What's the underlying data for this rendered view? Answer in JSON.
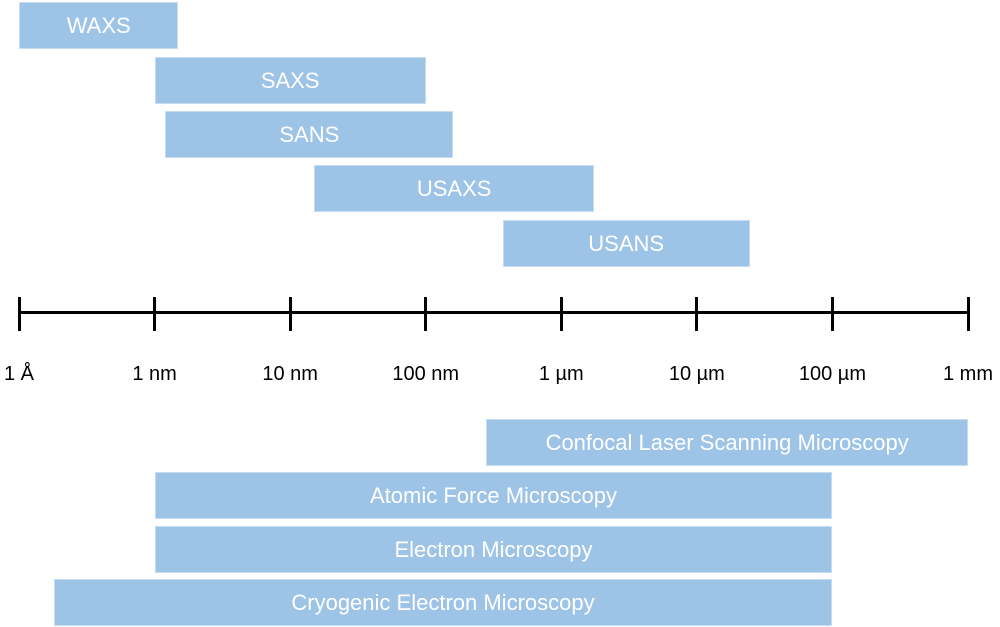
{
  "axis": {
    "scale": "log",
    "unit": "nm",
    "range": [
      0.1,
      1000000
    ],
    "ticks": [
      {
        "value": 0.1,
        "label": "1 Å"
      },
      {
        "value": 1,
        "label": "1 nm"
      },
      {
        "value": 10,
        "label": "10 nm"
      },
      {
        "value": 100,
        "label": "100 nm"
      },
      {
        "value": 1000,
        "label": "1 µm"
      },
      {
        "value": 10000,
        "label": "10 µm"
      },
      {
        "value": 100000,
        "label": "100 µm"
      },
      {
        "value": 1000000,
        "label": "1 mm"
      }
    ]
  },
  "bar_color": "#9dc3e6",
  "scattering_techniques": [
    {
      "label": "WAXS",
      "min": 0.1,
      "max": 1.5
    },
    {
      "label": "SAXS",
      "min": 1,
      "max": 100
    },
    {
      "label": "SANS",
      "min": 1.2,
      "max": 160
    },
    {
      "label": "USAXS",
      "min": 15,
      "max": 1750
    },
    {
      "label": "USANS",
      "min": 370,
      "max": 24500
    }
  ],
  "microscopy_techniques": [
    {
      "label": "Confocal Laser Scanning Microscopy",
      "min": 280,
      "max": 1000000
    },
    {
      "label": "Atomic Force Microscopy",
      "min": 1,
      "max": 100000
    },
    {
      "label": "Electron Microscopy",
      "min": 1,
      "max": 100000
    },
    {
      "label": "Cryogenic Electron Microscopy",
      "min": 0.18,
      "max": 100000
    }
  ]
}
